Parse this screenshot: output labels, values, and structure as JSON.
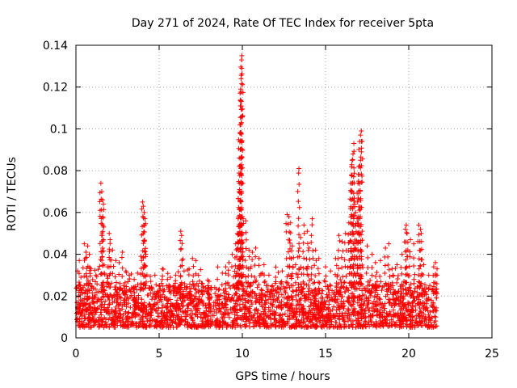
{
  "chart_data": {
    "type": "scatter",
    "title": "Day 271 of 2024, Rate Of TEC Index for receiver 5pta",
    "xlabel": "GPS time / hours",
    "ylabel": "ROTI / TECUs",
    "xlim": [
      0,
      25
    ],
    "ylim": [
      0,
      0.14
    ],
    "x_ticks": [
      "0",
      "5",
      "10",
      "15",
      "20",
      "25"
    ],
    "y_ticks": [
      "0",
      "0.02",
      "0.04",
      "0.06",
      "0.08",
      "0.1",
      "0.12",
      "0.14"
    ],
    "grid": true,
    "marker": "+",
    "series": [
      {
        "name": "ROTI",
        "color": "#ff0000",
        "data_range_hours": [
          0,
          21.7
        ],
        "baseline_band": [
          0.005,
          0.025
        ],
        "points": [
          [
            0.1,
            0.032
          ],
          [
            0.2,
            0.037
          ],
          [
            0.3,
            0.029
          ],
          [
            0.5,
            0.045
          ],
          [
            0.6,
            0.041
          ],
          [
            0.7,
            0.044
          ],
          [
            0.8,
            0.04
          ],
          [
            0.9,
            0.033
          ],
          [
            1.2,
            0.03
          ],
          [
            1.5,
            0.074
          ],
          [
            1.55,
            0.07
          ],
          [
            1.6,
            0.066
          ],
          [
            1.65,
            0.064
          ],
          [
            1.7,
            0.031
          ],
          [
            1.9,
            0.034
          ],
          [
            2.0,
            0.05
          ],
          [
            2.05,
            0.047
          ],
          [
            2.2,
            0.042
          ],
          [
            2.4,
            0.037
          ],
          [
            2.6,
            0.036
          ],
          [
            2.8,
            0.041
          ],
          [
            3.0,
            0.032
          ],
          [
            3.2,
            0.03
          ],
          [
            3.5,
            0.028
          ],
          [
            3.7,
            0.031
          ],
          [
            3.9,
            0.039
          ],
          [
            4.0,
            0.065
          ],
          [
            4.05,
            0.063
          ],
          [
            4.1,
            0.06
          ],
          [
            4.15,
            0.057
          ],
          [
            4.2,
            0.04
          ],
          [
            4.5,
            0.027
          ],
          [
            5.0,
            0.025
          ],
          [
            5.5,
            0.028
          ],
          [
            6.0,
            0.03
          ],
          [
            6.3,
            0.051
          ],
          [
            6.35,
            0.049
          ],
          [
            6.5,
            0.032
          ],
          [
            6.8,
            0.033
          ],
          [
            7.0,
            0.038
          ],
          [
            7.2,
            0.037
          ],
          [
            7.6,
            0.026
          ],
          [
            8.0,
            0.027
          ],
          [
            8.5,
            0.028
          ],
          [
            8.8,
            0.031
          ],
          [
            9.0,
            0.034
          ],
          [
            9.2,
            0.036
          ],
          [
            9.4,
            0.04
          ],
          [
            9.6,
            0.045
          ],
          [
            9.7,
            0.05
          ],
          [
            9.75,
            0.057
          ],
          [
            9.8,
            0.07
          ],
          [
            9.82,
            0.082
          ],
          [
            9.85,
            0.098
          ],
          [
            9.88,
            0.111
          ],
          [
            9.9,
            0.119
          ],
          [
            9.92,
            0.124
          ],
          [
            9.95,
            0.133
          ],
          [
            9.97,
            0.135
          ],
          [
            10.0,
            0.058
          ],
          [
            10.05,
            0.057
          ],
          [
            10.2,
            0.056
          ],
          [
            10.4,
            0.042
          ],
          [
            10.6,
            0.041
          ],
          [
            10.8,
            0.043
          ],
          [
            11.0,
            0.038
          ],
          [
            11.3,
            0.035
          ],
          [
            11.6,
            0.03
          ],
          [
            12.0,
            0.029
          ],
          [
            12.4,
            0.032
          ],
          [
            12.7,
            0.059
          ],
          [
            12.8,
            0.058
          ],
          [
            12.9,
            0.055
          ],
          [
            13.0,
            0.044
          ],
          [
            13.2,
            0.035
          ],
          [
            13.4,
            0.081
          ],
          [
            13.5,
            0.048
          ],
          [
            13.7,
            0.054
          ],
          [
            13.9,
            0.051
          ],
          [
            14.0,
            0.043
          ],
          [
            14.2,
            0.057
          ],
          [
            14.4,
            0.042
          ],
          [
            14.6,
            0.038
          ],
          [
            15.0,
            0.034
          ],
          [
            15.3,
            0.032
          ],
          [
            15.6,
            0.038
          ],
          [
            15.8,
            0.049
          ],
          [
            16.0,
            0.046
          ],
          [
            16.2,
            0.05
          ],
          [
            16.4,
            0.055
          ],
          [
            16.5,
            0.074
          ],
          [
            16.55,
            0.078
          ],
          [
            16.6,
            0.085
          ],
          [
            16.65,
            0.088
          ],
          [
            16.7,
            0.093
          ],
          [
            16.75,
            0.064
          ],
          [
            16.8,
            0.06
          ],
          [
            16.9,
            0.057
          ],
          [
            16.95,
            0.074
          ],
          [
            17.0,
            0.082
          ],
          [
            17.05,
            0.094
          ],
          [
            17.1,
            0.097
          ],
          [
            17.15,
            0.099
          ],
          [
            17.2,
            0.051
          ],
          [
            17.5,
            0.044
          ],
          [
            17.8,
            0.04
          ],
          [
            18.0,
            0.036
          ],
          [
            18.3,
            0.037
          ],
          [
            18.6,
            0.043
          ],
          [
            18.8,
            0.045
          ],
          [
            19.0,
            0.033
          ],
          [
            19.3,
            0.035
          ],
          [
            19.6,
            0.04
          ],
          [
            19.8,
            0.052
          ],
          [
            19.85,
            0.054
          ],
          [
            19.9,
            0.05
          ],
          [
            20.1,
            0.047
          ],
          [
            20.3,
            0.045
          ],
          [
            20.6,
            0.054
          ],
          [
            20.7,
            0.052
          ],
          [
            20.75,
            0.05
          ],
          [
            20.9,
            0.035
          ],
          [
            21.2,
            0.03
          ],
          [
            21.5,
            0.034
          ],
          [
            21.6,
            0.036
          ],
          [
            21.7,
            0.033
          ]
        ]
      }
    ]
  }
}
